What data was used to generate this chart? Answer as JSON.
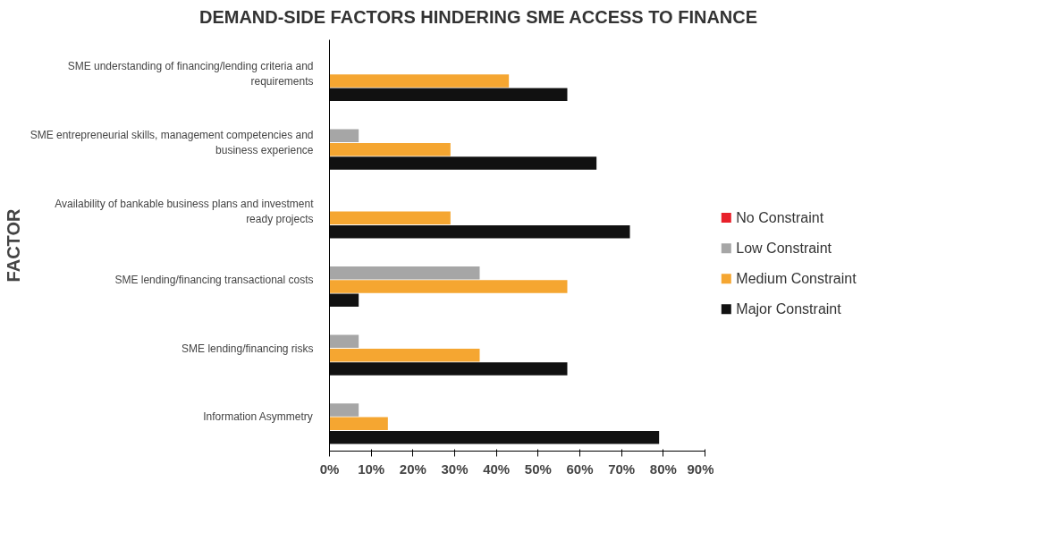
{
  "chart_data": {
    "type": "bar",
    "orientation": "horizontal",
    "title": "DEMAND-SIDE FACTORS HINDERING SME ACCESS TO FINANCE",
    "ylabel": "FACTOR",
    "categories": [
      "SME understanding of financing/lending criteria and requirements",
      "SME entrepreneurial skills, management competencies and business experience",
      "Availability of bankable business plans and investment ready projects",
      "SME lending/financing transactional costs",
      "SME lending/financing risks",
      "Information Asymmetry"
    ],
    "series": [
      {
        "name": "No Constraint",
        "color": "#e8202a",
        "values": [
          0,
          0,
          0,
          0,
          0,
          0
        ]
      },
      {
        "name": "Low Constraint",
        "color": "#a6a6a6",
        "values": [
          0,
          7,
          0,
          36,
          7,
          7
        ]
      },
      {
        "name": "Medium Constraint",
        "color": "#f5a631",
        "values": [
          43,
          29,
          29,
          57,
          36,
          14
        ]
      },
      {
        "name": "Major Constraint",
        "color": "#111111",
        "values": [
          57,
          64,
          72,
          7,
          57,
          79
        ]
      }
    ],
    "xlim": [
      0,
      90
    ],
    "xticks": [
      {
        "value": 0,
        "label": "0%"
      },
      {
        "value": 10,
        "label": "10%"
      },
      {
        "value": 20,
        "label": "20%"
      },
      {
        "value": 30,
        "label": "30%"
      },
      {
        "value": 40,
        "label": "40%"
      },
      {
        "value": 50,
        "label": "50%"
      },
      {
        "value": 60,
        "label": "60%"
      },
      {
        "value": 70,
        "label": "70%"
      },
      {
        "value": 80,
        "label": "80%"
      },
      {
        "value": 90,
        "label": "90%"
      }
    ],
    "grid": false,
    "legend": "right"
  }
}
